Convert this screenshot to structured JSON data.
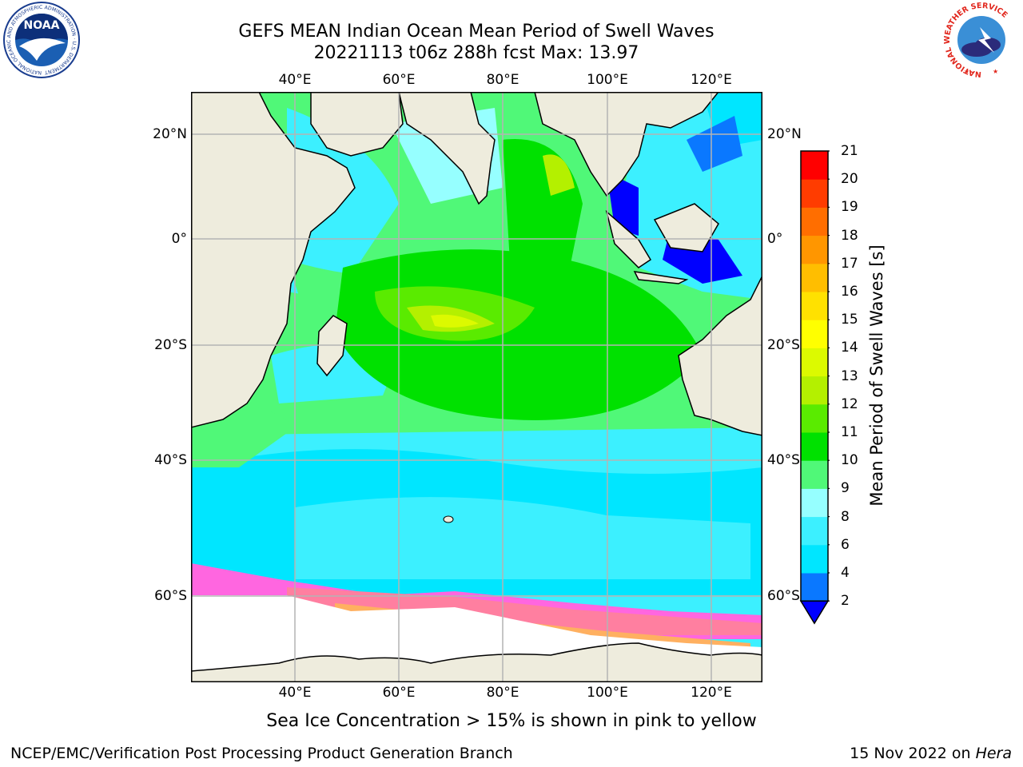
{
  "header": {
    "title_line1": "GEFS MEAN Indian Ocean Mean Period of Swell Waves",
    "title_line2": "20221113 t06z 288h fcst   Max: 13.97"
  },
  "logos": {
    "noaa_label": "NOAA",
    "noaa_ring_text": "NATIONAL OCEANIC AND ATMOSPHERIC ADMINISTRATION · U.S. DEPARTMENT OF COMMERCE",
    "nws_ring_text": "NATIONAL WEATHER SERVICE"
  },
  "map": {
    "lon_labels": [
      "40°E",
      "60°E",
      "80°E",
      "100°E",
      "120°E"
    ],
    "lat_labels": [
      "20°N",
      "0°",
      "20°S",
      "40°S",
      "60°S"
    ],
    "colors": {
      "land": "#eeecdd",
      "ice": "#ffffff",
      "grid": "#b4b4b4"
    }
  },
  "colorbar": {
    "label": "Mean Period of Swell Waves [s]",
    "ticks": [
      "2",
      "4",
      "6",
      "8",
      "9",
      "10",
      "11",
      "12",
      "13",
      "14",
      "15",
      "16",
      "17",
      "18",
      "19",
      "20",
      "21"
    ],
    "colors": [
      "#0000ff",
      "#0a78ff",
      "#00e6ff",
      "#3cf0ff",
      "#96ffff",
      "#50f878",
      "#00e100",
      "#5aeb00",
      "#b4f000",
      "#dcfa00",
      "#ffff00",
      "#ffe100",
      "#ffbe00",
      "#ff9600",
      "#ff6e00",
      "#ff3c00",
      "#ff0000"
    ]
  },
  "caption": "Sea Ice Concentration > 15% is shown in pink to yellow",
  "footer": {
    "left": "NCEP/EMC/Verification Post Processing Product Generation Branch",
    "right_prefix": "15 Nov 2022 on ",
    "right_host": "Hera"
  }
}
